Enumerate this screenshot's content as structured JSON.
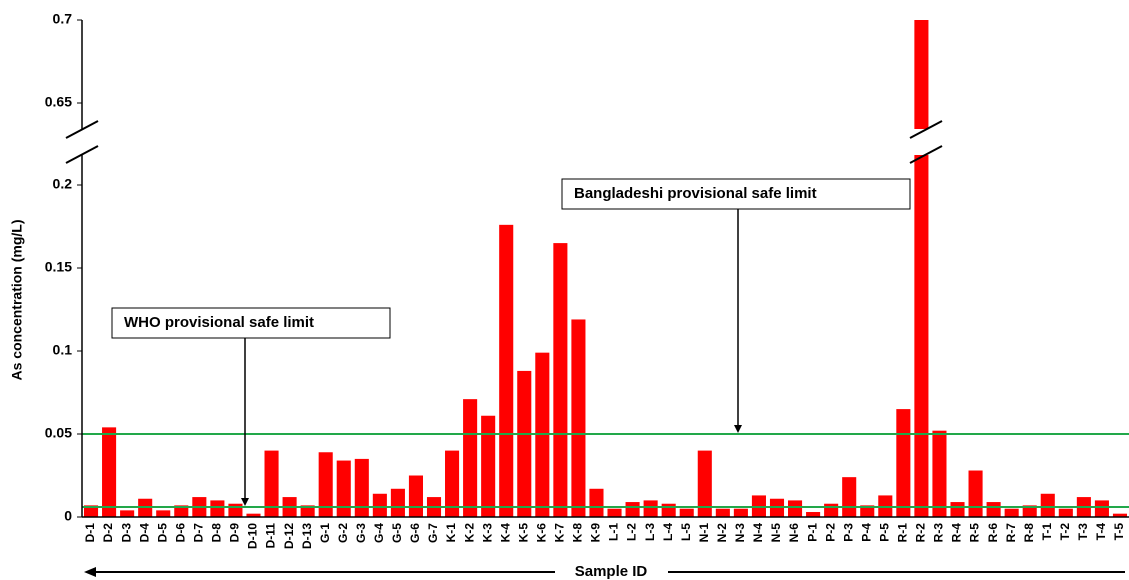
{
  "chart_data": {
    "type": "bar",
    "y_label": "As concentration (mg/L)",
    "x_label": "Sample ID",
    "categories": [
      "D-1",
      "D-2",
      "D-3",
      "D-4",
      "D-5",
      "D-6",
      "D-7",
      "D-8",
      "D-9",
      "D-10",
      "D-11",
      "D-12",
      "D-13",
      "G-1",
      "G-2",
      "G-3",
      "G-4",
      "G-5",
      "G-6",
      "G-7",
      "K-1",
      "K-2",
      "K-3",
      "K-4",
      "K-5",
      "K-6",
      "K-7",
      "K-8",
      "K-9",
      "L-1",
      "L-2",
      "L-3",
      "L-4",
      "L-5",
      "N-1",
      "N-2",
      "N-3",
      "N-4",
      "N-5",
      "N-6",
      "P-1",
      "P-2",
      "P-3",
      "P-4",
      "P-5",
      "R-1",
      "R-2",
      "R-3",
      "R-4",
      "R-5",
      "R-6",
      "R-7",
      "R-8",
      "T-1",
      "T-2",
      "T-3",
      "T-4",
      "T-5"
    ],
    "series": [
      {
        "color": "#ff0000",
        "values": [
          0.007,
          0.054,
          0.004,
          0.011,
          0.004,
          0.007,
          0.012,
          0.01,
          0.008,
          0.002,
          0.04,
          0.012,
          0.007,
          0.039,
          0.034,
          0.035,
          0.014,
          0.017,
          0.025,
          0.012,
          0.04,
          0.071,
          0.061,
          0.176,
          0.088,
          0.099,
          0.165,
          0.119,
          0.017,
          0.005,
          0.009,
          0.01,
          0.008,
          0.005,
          0.04,
          0.005,
          0.005,
          0.013,
          0.011,
          0.01,
          0.003,
          0.008,
          0.024,
          0.007,
          0.013,
          0.065,
          0.7,
          0.052,
          0.009,
          0.028,
          0.009,
          0.005,
          0.007,
          0.014,
          0.005,
          0.012,
          0.01,
          0.002
        ]
      }
    ],
    "ylim": [
      0,
      0.7
    ],
    "axis_break": [
      0.2,
      0.65
    ],
    "yticks": [
      0,
      0.05,
      0.1,
      0.15,
      0.2,
      0.65,
      0.7
    ],
    "reference_lines": [
      {
        "label": "WHO provisional safe limit",
        "value": 0.006,
        "color": "#22a84a"
      },
      {
        "label": "Bangladeshi provisional safe limit",
        "value": 0.05,
        "color": "#22a84a"
      }
    ]
  }
}
